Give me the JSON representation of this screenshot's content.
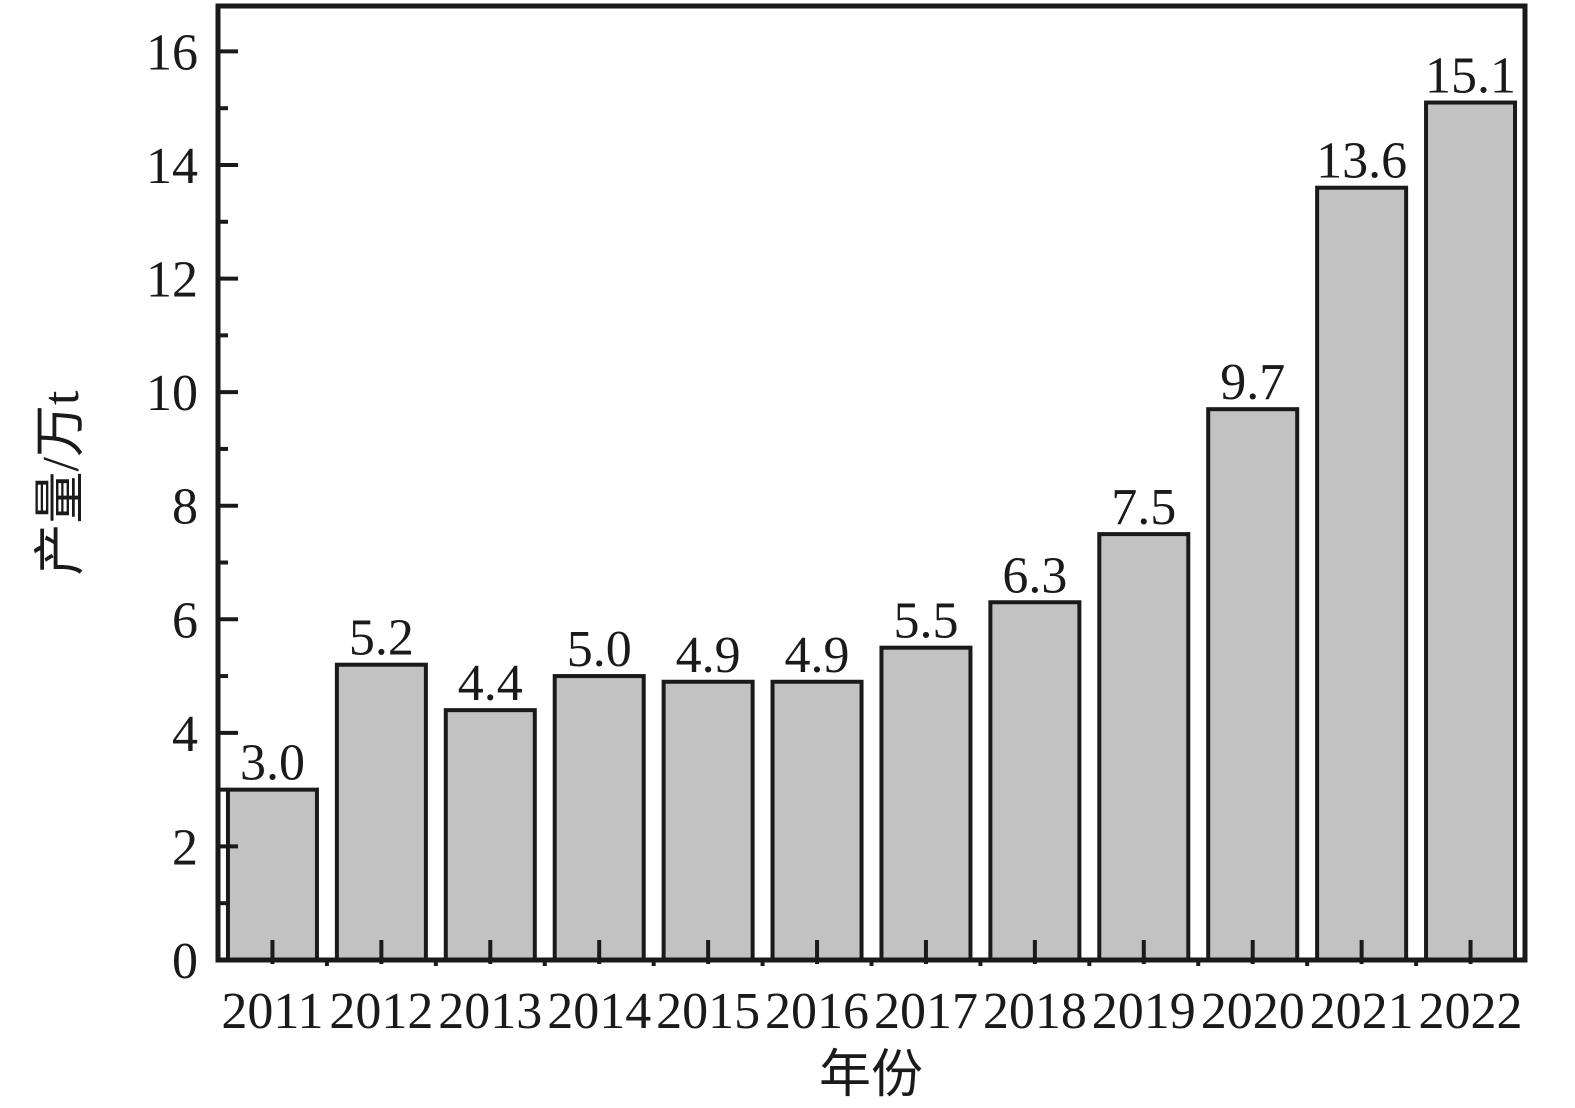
{
  "chart_data": {
    "type": "bar",
    "title": "",
    "xlabel": "年份",
    "ylabel": "产量/万t",
    "categories": [
      "2011",
      "2012",
      "2013",
      "2014",
      "2015",
      "2016",
      "2017",
      "2018",
      "2019",
      "2020",
      "2021",
      "2022"
    ],
    "values": [
      3.0,
      5.2,
      4.4,
      5.0,
      4.9,
      4.9,
      5.5,
      6.3,
      7.5,
      9.7,
      13.6,
      15.1
    ],
    "value_labels": [
      "3.0",
      "5.2",
      "4.4",
      "5.0",
      "4.9",
      "4.9",
      "5.5",
      "6.3",
      "7.5",
      "9.7",
      "13.6",
      "15.1"
    ],
    "ylim": [
      0,
      16.8
    ],
    "yticks": [
      0,
      2,
      4,
      6,
      8,
      10,
      12,
      14,
      16
    ],
    "ytick_step": 2,
    "grid": false,
    "legend": false,
    "bar_fill": "#c2c2c2",
    "bar_stroke": "#1a1a1a",
    "axis_color": "#1a1a1a",
    "background": "#ffffff"
  }
}
